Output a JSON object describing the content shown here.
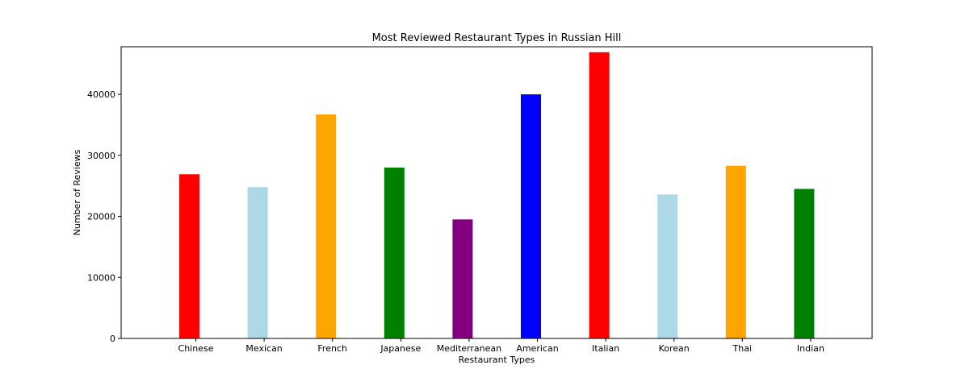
{
  "chart_data": {
    "type": "bar",
    "title": "Most Reviewed Restaurant Types in Russian Hill",
    "xlabel": "Restaurant Types",
    "ylabel": "Number of Reviews",
    "categories": [
      "Chinese",
      "Mexican",
      "French",
      "Japanese",
      "Mediterranean",
      "American",
      "Italian",
      "Korean",
      "Thai",
      "Indian"
    ],
    "values": [
      26900,
      24800,
      36700,
      28000,
      19500,
      40000,
      46900,
      23600,
      28300,
      24500
    ],
    "colors": [
      "#ff0000",
      "#add8e6",
      "#ffa500",
      "#008000",
      "#800080",
      "#0000ff",
      "#ff0000",
      "#add8e6",
      "#ffa500",
      "#008000"
    ],
    "ylim": [
      0,
      47800
    ],
    "yticks": [
      0,
      10000,
      20000,
      30000,
      40000
    ],
    "ytick_labels": [
      "0",
      "10000",
      "20000",
      "30000",
      "40000"
    ],
    "grid": false
  }
}
